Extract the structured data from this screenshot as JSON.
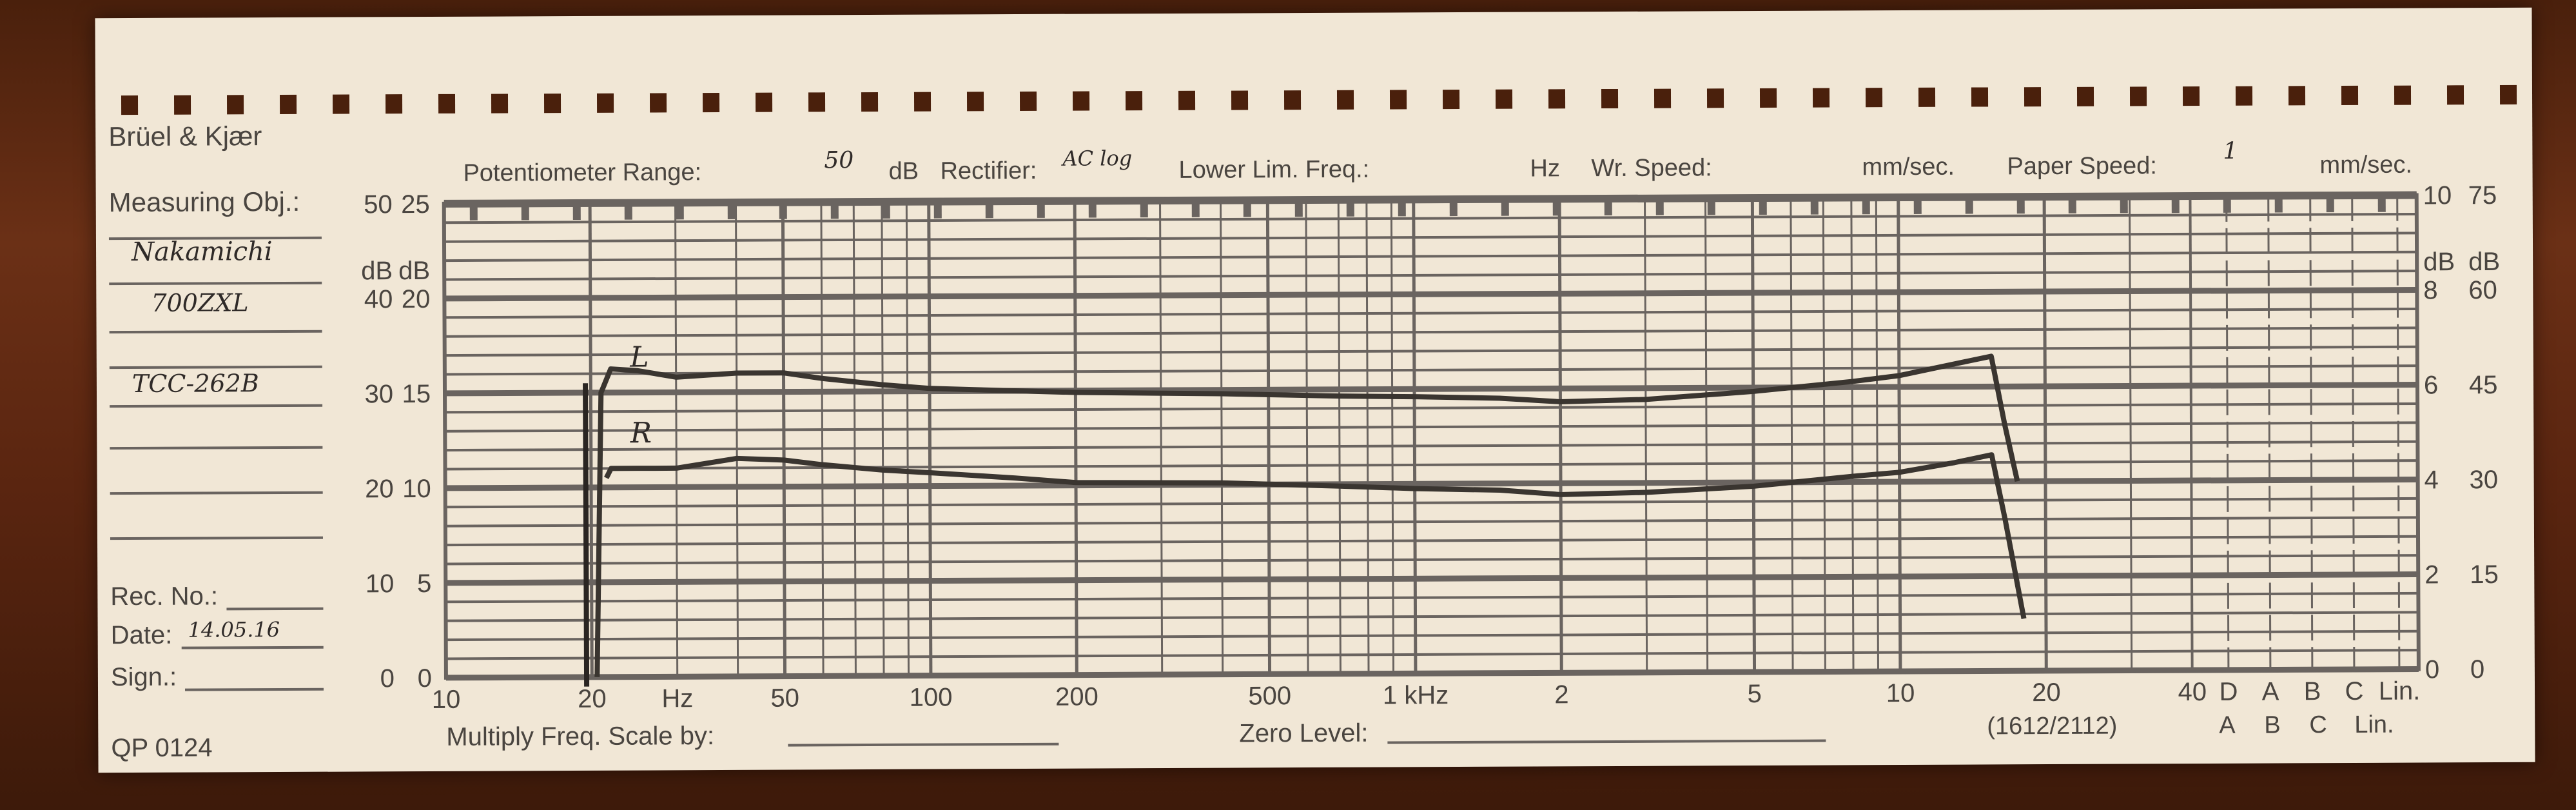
{
  "header": {
    "brand": "Brüel & Kjær",
    "potentiometer_label": "Potentiometer Range:",
    "potentiometer_value": "50",
    "potentiometer_unit": "dB",
    "rectifier_label": "Rectifier:",
    "rectifier_value": "AC log",
    "lower_lim_label": "Lower Lim. Freq.:",
    "lower_lim_unit": "Hz",
    "wr_speed_label": "Wr. Speed:",
    "wr_speed_unit": "mm/sec.",
    "paper_speed_label": "Paper Speed:",
    "paper_speed_value": "1",
    "paper_speed_unit": "mm/sec."
  },
  "sidebar": {
    "measuring_obj_label": "Measuring Obj.:",
    "measuring_obj_lines": [
      "Nakamichi",
      "700ZXL",
      "TCC-262B"
    ],
    "rec_no_label": "Rec. No.:",
    "date_label": "Date:",
    "date_value": "14.05.16",
    "sign_label": "Sign.:",
    "form_code": "QP 0124"
  },
  "footer": {
    "multiply_label": "Multiply Freq. Scale by:",
    "zero_level_label": "Zero Level:",
    "model_code": "(1612/2112)",
    "weighting_row2": [
      "A",
      "B",
      "C",
      "Lin."
    ]
  },
  "chart_data": {
    "type": "line",
    "xscale": "log",
    "xlim": [
      10,
      40000
    ],
    "ylim": [
      0,
      50
    ],
    "grid": true,
    "ylabel": "dB",
    "x_tick_labels": [
      {
        "f": 10,
        "label": "10"
      },
      {
        "f": 20,
        "label": "20"
      },
      {
        "f": 30,
        "label": "Hz"
      },
      {
        "f": 50,
        "label": "50"
      },
      {
        "f": 100,
        "label": "100"
      },
      {
        "f": 200,
        "label": "200"
      },
      {
        "f": 500,
        "label": "500"
      },
      {
        "f": 1000,
        "label": "1 kHz"
      },
      {
        "f": 2000,
        "label": "2"
      },
      {
        "f": 5000,
        "label": "5"
      },
      {
        "f": 10000,
        "label": "10"
      },
      {
        "f": 20000,
        "label": "20"
      },
      {
        "f": 40000,
        "label": "40"
      }
    ],
    "weighting_labels": [
      "D",
      "A",
      "B",
      "C",
      "Lin."
    ],
    "left_scale_outer": [
      "0",
      "10",
      "20",
      "30",
      "40",
      "50"
    ],
    "left_scale_inner": [
      "0",
      "5",
      "10",
      "15",
      "20",
      "25"
    ],
    "right_scale_inner": [
      "0",
      "2",
      "4",
      "6",
      "8",
      "10"
    ],
    "right_scale_outer": [
      "0",
      "15",
      "30",
      "45",
      "60",
      "75"
    ],
    "scale_unit": "dB",
    "series": [
      {
        "name": "L",
        "color": "#3a3530",
        "points": [
          [
            20.5,
            0
          ],
          [
            21,
            30
          ],
          [
            22,
            32.5
          ],
          [
            25,
            32.3
          ],
          [
            30,
            31.6
          ],
          [
            40,
            32
          ],
          [
            50,
            32
          ],
          [
            60,
            31.4
          ],
          [
            80,
            30.7
          ],
          [
            100,
            30.3
          ],
          [
            150,
            30
          ],
          [
            200,
            29.8
          ],
          [
            400,
            29.6
          ],
          [
            700,
            29.3
          ],
          [
            1000,
            29.2
          ],
          [
            1500,
            29
          ],
          [
            2000,
            28.6
          ],
          [
            3000,
            28.8
          ],
          [
            5000,
            29.6
          ],
          [
            8000,
            30.6
          ],
          [
            10000,
            31.2
          ],
          [
            13000,
            32.4
          ],
          [
            15500,
            33.2
          ],
          [
            16500,
            26
          ],
          [
            17500,
            20
          ]
        ]
      },
      {
        "name": "R",
        "color": "#3a3530",
        "points": [
          [
            21.5,
            21
          ],
          [
            22,
            22
          ],
          [
            25,
            22
          ],
          [
            30,
            22
          ],
          [
            40,
            23
          ],
          [
            50,
            22.8
          ],
          [
            60,
            22.3
          ],
          [
            80,
            21.7
          ],
          [
            100,
            21.4
          ],
          [
            150,
            20.8
          ],
          [
            200,
            20.3
          ],
          [
            400,
            20.2
          ],
          [
            700,
            19.8
          ],
          [
            1000,
            19.5
          ],
          [
            1500,
            19.3
          ],
          [
            2000,
            18.8
          ],
          [
            3000,
            19
          ],
          [
            5000,
            19.6
          ],
          [
            8000,
            20.6
          ],
          [
            10000,
            21
          ],
          [
            13000,
            22
          ],
          [
            15500,
            22.8
          ],
          [
            16500,
            16
          ],
          [
            18000,
            5.5
          ]
        ]
      }
    ]
  }
}
